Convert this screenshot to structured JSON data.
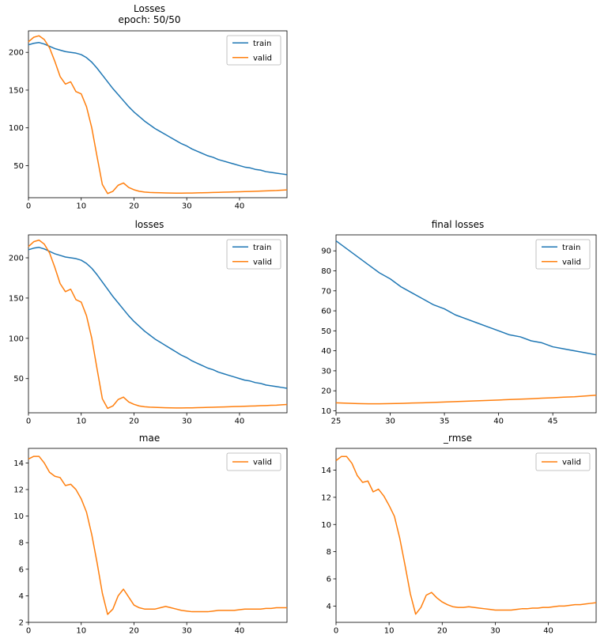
{
  "figure": {
    "background": "#ffffff",
    "axis_color": "#000000",
    "legend_border_color": "#b3b3b3",
    "legend_background": "#ffffff"
  },
  "colors": {
    "train": "#1f77b4",
    "valid": "#ff7f0e"
  },
  "chart_data": [
    {
      "id": "losses-epoch",
      "type": "line",
      "title": "Losses",
      "subtitle": "epoch: 50/50",
      "xlabel": "",
      "ylabel": "",
      "grid": false,
      "legend_position": "upper right",
      "xlim": [
        0,
        49
      ],
      "ylim": [
        7.5,
        228.5
      ],
      "xticks": [
        0,
        10,
        20,
        30,
        40
      ],
      "yticks": [
        50,
        100,
        150,
        200
      ],
      "x0": 0,
      "x_step": 1,
      "series": [
        {
          "name": "train",
          "color": "#1f77b4",
          "values": [
            210,
            212,
            213,
            211,
            208,
            205,
            203,
            201,
            200,
            199,
            197,
            193,
            187,
            179,
            170,
            161,
            152,
            144,
            136,
            128,
            121,
            115,
            109,
            104,
            99,
            95,
            91,
            87,
            83,
            79,
            76,
            72,
            69,
            66,
            63,
            61,
            58,
            56,
            54,
            52,
            50,
            48,
            47,
            45,
            44,
            42,
            41,
            40,
            39,
            38
          ]
        },
        {
          "name": "valid",
          "color": "#ff7f0e",
          "values": [
            214,
            220,
            222,
            217,
            206,
            188,
            168,
            158,
            161,
            148,
            145,
            128,
            100,
            62,
            25,
            13,
            16,
            24,
            27,
            21,
            18,
            16,
            15,
            14.5,
            14.2,
            14,
            13.8,
            13.6,
            13.5,
            13.5,
            13.6,
            13.7,
            13.9,
            14,
            14.2,
            14.4,
            14.6,
            14.8,
            15,
            15.2,
            15.4,
            15.6,
            15.8,
            16,
            16.3,
            16.5,
            16.8,
            17,
            17.4,
            17.8
          ]
        }
      ]
    },
    {
      "id": "losses",
      "type": "line",
      "title": "losses",
      "xlabel": "",
      "ylabel": "",
      "grid": false,
      "legend_position": "upper right",
      "xlim": [
        0,
        49
      ],
      "ylim": [
        7.5,
        228.5
      ],
      "xticks": [
        0,
        10,
        20,
        30,
        40
      ],
      "yticks": [
        50,
        100,
        150,
        200
      ],
      "x0": 0,
      "x_step": 1,
      "series": [
        {
          "name": "train",
          "color": "#1f77b4",
          "values": [
            210,
            212,
            213,
            211,
            208,
            205,
            203,
            201,
            200,
            199,
            197,
            193,
            187,
            179,
            170,
            161,
            152,
            144,
            136,
            128,
            121,
            115,
            109,
            104,
            99,
            95,
            91,
            87,
            83,
            79,
            76,
            72,
            69,
            66,
            63,
            61,
            58,
            56,
            54,
            52,
            50,
            48,
            47,
            45,
            44,
            42,
            41,
            40,
            39,
            38
          ]
        },
        {
          "name": "valid",
          "color": "#ff7f0e",
          "values": [
            214,
            220,
            222,
            217,
            206,
            188,
            168,
            158,
            161,
            148,
            145,
            128,
            100,
            62,
            25,
            13,
            16,
            24,
            27,
            21,
            18,
            16,
            15,
            14.5,
            14.2,
            14,
            13.8,
            13.6,
            13.5,
            13.5,
            13.6,
            13.7,
            13.9,
            14,
            14.2,
            14.4,
            14.6,
            14.8,
            15,
            15.2,
            15.4,
            15.6,
            15.8,
            16,
            16.3,
            16.5,
            16.8,
            17,
            17.4,
            17.8
          ]
        }
      ]
    },
    {
      "id": "final-losses",
      "type": "line",
      "title": "final losses",
      "xlabel": "",
      "ylabel": "",
      "grid": false,
      "legend_position": "upper right",
      "xlim": [
        25,
        49
      ],
      "ylim": [
        9,
        98
      ],
      "xticks": [
        25,
        30,
        35,
        40,
        45
      ],
      "yticks": [
        10,
        20,
        30,
        40,
        50,
        60,
        70,
        80,
        90
      ],
      "x0": 25,
      "x_step": 1,
      "series": [
        {
          "name": "train",
          "color": "#1f77b4",
          "values": [
            95,
            91,
            87,
            83,
            79,
            76,
            72,
            69,
            66,
            63,
            61,
            58,
            56,
            54,
            52,
            50,
            48,
            47,
            45,
            44,
            42,
            41,
            40,
            39,
            38
          ]
        },
        {
          "name": "valid",
          "color": "#ff7f0e",
          "values": [
            14,
            13.8,
            13.6,
            13.5,
            13.5,
            13.6,
            13.7,
            13.9,
            14,
            14.2,
            14.4,
            14.6,
            14.8,
            15,
            15.2,
            15.4,
            15.6,
            15.8,
            16,
            16.3,
            16.5,
            16.8,
            17,
            17.4,
            17.8
          ]
        }
      ]
    },
    {
      "id": "mae",
      "type": "line",
      "title": "mae",
      "xlabel": "",
      "ylabel": "",
      "grid": false,
      "legend_position": "upper right",
      "xlim": [
        0,
        49
      ],
      "ylim": [
        2.0,
        15.1
      ],
      "xticks": [
        0,
        10,
        20,
        30,
        40
      ],
      "yticks": [
        2,
        4,
        6,
        8,
        10,
        12,
        14
      ],
      "x0": 0,
      "x_step": 1,
      "series": [
        {
          "name": "valid",
          "color": "#ff7f0e",
          "values": [
            14.3,
            14.5,
            14.5,
            14,
            13.3,
            13,
            12.9,
            12.3,
            12.4,
            12,
            11.3,
            10.3,
            8.6,
            6.5,
            4.2,
            2.6,
            3,
            4,
            4.5,
            3.9,
            3.3,
            3.1,
            3,
            3,
            3,
            3.1,
            3.2,
            3.1,
            3,
            2.9,
            2.85,
            2.8,
            2.8,
            2.8,
            2.8,
            2.85,
            2.9,
            2.9,
            2.9,
            2.9,
            2.95,
            3,
            3,
            3,
            3,
            3.05,
            3.05,
            3.1,
            3.1,
            3.1
          ]
        }
      ]
    },
    {
      "id": "rmse",
      "type": "line",
      "title": "_rmse",
      "xlabel": "",
      "ylabel": "",
      "grid": false,
      "legend_position": "upper right",
      "xlim": [
        0,
        49
      ],
      "ylim": [
        2.8,
        15.6
      ],
      "xticks": [
        0,
        10,
        20,
        30,
        40
      ],
      "yticks": [
        4,
        6,
        8,
        10,
        12,
        14
      ],
      "x0": 0,
      "x_step": 1,
      "series": [
        {
          "name": "valid",
          "color": "#ff7f0e",
          "values": [
            14.7,
            15,
            15,
            14.5,
            13.6,
            13.1,
            13.2,
            12.4,
            12.6,
            12.1,
            11.4,
            10.6,
            9,
            7,
            4.9,
            3.4,
            3.9,
            4.8,
            5,
            4.6,
            4.3,
            4.1,
            3.95,
            3.9,
            3.9,
            3.95,
            3.9,
            3.85,
            3.8,
            3.75,
            3.7,
            3.7,
            3.7,
            3.7,
            3.75,
            3.8,
            3.8,
            3.85,
            3.85,
            3.9,
            3.9,
            3.95,
            4,
            4,
            4.05,
            4.1,
            4.1,
            4.15,
            4.2,
            4.25
          ]
        }
      ]
    }
  ]
}
